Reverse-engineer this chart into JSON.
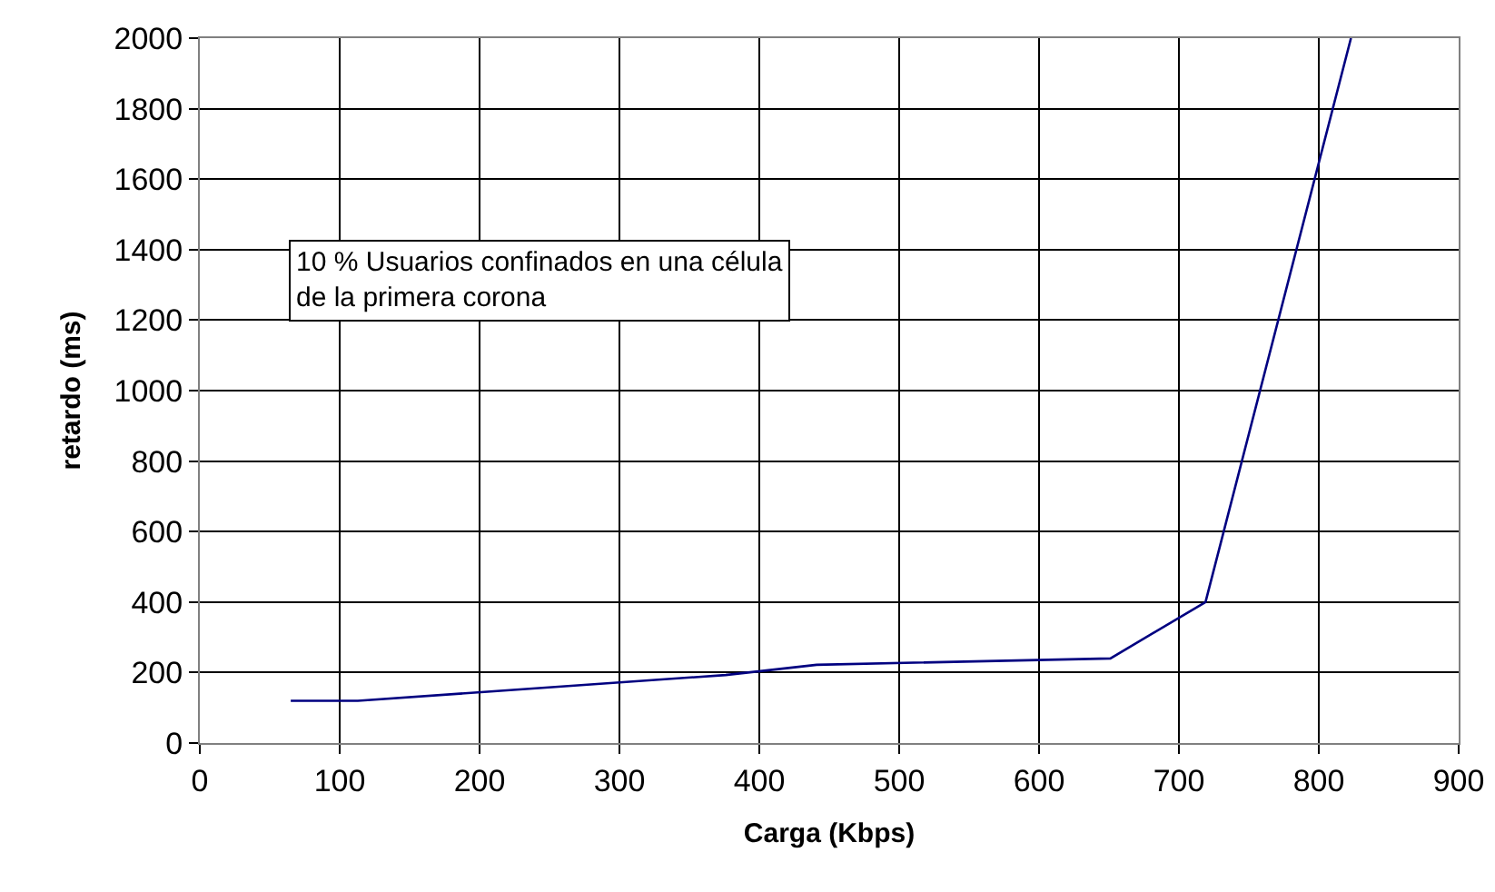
{
  "chart_data": {
    "type": "line",
    "xlabel": "Carga (Kbps)",
    "ylabel": "retardo (ms)",
    "series": [
      {
        "color": "#000080",
        "x": [
          65,
          113,
          376,
          441,
          651,
          719,
          823
        ],
        "values": [
          120,
          120,
          193,
          222,
          240,
          400,
          2000
        ]
      }
    ],
    "xlim": [
      0,
      900
    ],
    "xticks": [
      0,
      100,
      200,
      300,
      400,
      500,
      600,
      700,
      800,
      900
    ],
    "ylim": [
      0,
      2000
    ],
    "yticks": [
      0,
      200,
      400,
      600,
      800,
      1000,
      1200,
      1400,
      1600,
      1800,
      2000
    ],
    "grid": true,
    "legend": false,
    "marker": "none",
    "line_style": "solid",
    "annotations": [
      "10 % Usuarios confinados en una célula\nde la primera corona"
    ]
  }
}
